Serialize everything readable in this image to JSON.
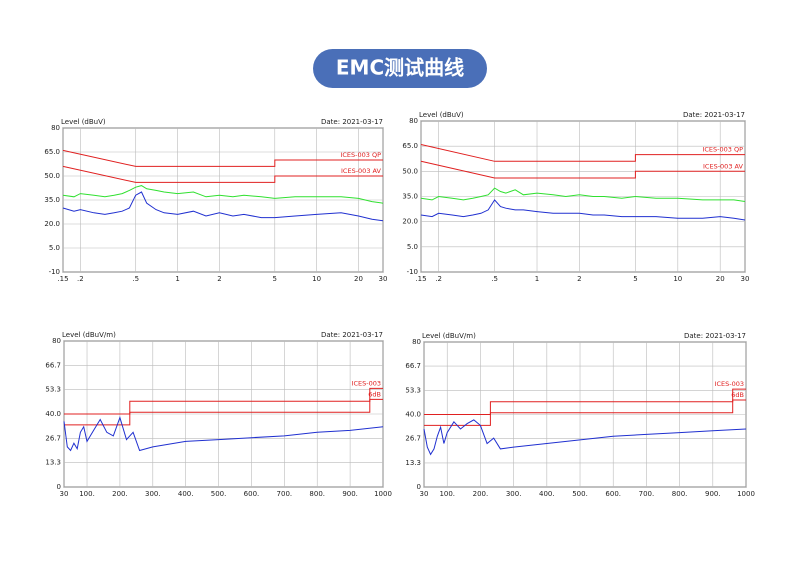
{
  "header": {
    "title": "EMC测试曲线"
  },
  "chart_data": [
    {
      "type": "line",
      "title": "Level (dBuV)",
      "subtitle": "Date: 2021-03-17",
      "xscale": "log",
      "grid": true,
      "xlim": [
        0.15,
        30
      ],
      "xticks": [
        {
          "value": 0.15,
          "label": ".15"
        },
        {
          "value": 0.2,
          "label": ".2"
        },
        {
          "value": 0.5,
          "label": ".5"
        },
        1,
        2,
        5,
        10,
        20,
        30
      ],
      "ylim": [
        -10,
        80
      ],
      "yticks": [
        80,
        {
          "value": 65,
          "label": "65.0"
        },
        {
          "value": 50,
          "label": "50.0"
        },
        {
          "value": 35,
          "label": "35.0"
        },
        {
          "value": 20,
          "label": "20.0"
        },
        {
          "value": 5,
          "label": "5.0"
        },
        -10
      ],
      "series": [
        {
          "name": "ICES-003 QP",
          "color": "#e02020",
          "x": [
            0.15,
            0.5,
            5,
            5,
            30
          ],
          "values": [
            66,
            56,
            56,
            60,
            60
          ]
        },
        {
          "name": "ICES-003 AV",
          "color": "#e02020",
          "x": [
            0.15,
            0.5,
            5,
            5,
            30
          ],
          "values": [
            56,
            46,
            46,
            50,
            50
          ]
        },
        {
          "color": "#30e030",
          "x": [
            0.15,
            0.18,
            0.2,
            0.25,
            0.3,
            0.35,
            0.4,
            0.45,
            0.5,
            0.55,
            0.6,
            0.7,
            0.8,
            1,
            1.3,
            1.6,
            2,
            2.5,
            3,
            4,
            5,
            7,
            10,
            15,
            20,
            25,
            30
          ],
          "values": [
            38,
            37,
            39,
            38,
            37,
            38,
            39,
            41,
            43,
            44,
            42,
            41,
            40,
            39,
            40,
            37,
            38,
            37,
            38,
            37,
            36,
            37,
            37,
            37,
            36,
            34,
            33
          ]
        },
        {
          "color": "#2030d0",
          "x": [
            0.15,
            0.18,
            0.2,
            0.25,
            0.3,
            0.35,
            0.4,
            0.45,
            0.5,
            0.55,
            0.6,
            0.7,
            0.8,
            1,
            1.3,
            1.6,
            2,
            2.5,
            3,
            4,
            5,
            7,
            10,
            15,
            20,
            25,
            30
          ],
          "values": [
            30,
            28,
            29,
            27,
            26,
            27,
            28,
            30,
            38,
            40,
            33,
            29,
            27,
            26,
            28,
            25,
            27,
            25,
            26,
            24,
            24,
            25,
            26,
            27,
            25,
            23,
            22
          ]
        }
      ]
    },
    {
      "type": "line",
      "title": "Level (dBuV)",
      "subtitle": "Date: 2021-03-17",
      "xscale": "log",
      "grid": true,
      "xlim": [
        0.15,
        30
      ],
      "xticks": [
        {
          "value": 0.15,
          "label": ".15"
        },
        {
          "value": 0.2,
          "label": ".2"
        },
        {
          "value": 0.5,
          "label": ".5"
        },
        1,
        2,
        5,
        10,
        20,
        30
      ],
      "ylim": [
        -10,
        80
      ],
      "yticks": [
        80,
        {
          "value": 65,
          "label": "65.0"
        },
        {
          "value": 50,
          "label": "50.0"
        },
        {
          "value": 35,
          "label": "35.0"
        },
        {
          "value": 20,
          "label": "20.0"
        },
        {
          "value": 5,
          "label": "5.0"
        },
        -10
      ],
      "series": [
        {
          "name": "ICES-003 QP",
          "color": "#e02020",
          "x": [
            0.15,
            0.5,
            5,
            5,
            30
          ],
          "values": [
            66,
            56,
            56,
            60,
            60
          ]
        },
        {
          "name": "ICES-003 AV",
          "color": "#e02020",
          "x": [
            0.15,
            0.5,
            5,
            5,
            30
          ],
          "values": [
            56,
            46,
            46,
            50,
            50
          ]
        },
        {
          "color": "#30e030",
          "x": [
            0.15,
            0.18,
            0.2,
            0.25,
            0.3,
            0.35,
            0.4,
            0.45,
            0.5,
            0.55,
            0.6,
            0.7,
            0.8,
            1,
            1.3,
            1.6,
            2,
            2.5,
            3,
            4,
            5,
            7,
            10,
            15,
            20,
            25,
            30
          ],
          "values": [
            34,
            33,
            35,
            34,
            33,
            34,
            35,
            36,
            40,
            38,
            37,
            39,
            36,
            37,
            36,
            35,
            36,
            35,
            35,
            34,
            35,
            34,
            34,
            33,
            33,
            33,
            32
          ]
        },
        {
          "color": "#2030d0",
          "x": [
            0.15,
            0.18,
            0.2,
            0.25,
            0.3,
            0.35,
            0.4,
            0.45,
            0.5,
            0.55,
            0.6,
            0.7,
            0.8,
            1,
            1.3,
            1.6,
            2,
            2.5,
            3,
            4,
            5,
            7,
            10,
            15,
            20,
            25,
            30
          ],
          "values": [
            24,
            23,
            25,
            24,
            23,
            24,
            25,
            27,
            33,
            29,
            28,
            27,
            27,
            26,
            25,
            25,
            25,
            24,
            24,
            23,
            23,
            23,
            22,
            22,
            23,
            22,
            21
          ]
        }
      ]
    },
    {
      "type": "line",
      "title": "Level (dBuV/m)",
      "subtitle": "Date: 2021-03-17",
      "xscale": "linear",
      "grid": true,
      "xlim": [
        30,
        1000
      ],
      "xticks": [
        30,
        {
          "value": 100,
          "label": "100."
        },
        {
          "value": 200,
          "label": "200."
        },
        {
          "value": 300,
          "label": "300."
        },
        {
          "value": 400,
          "label": "400."
        },
        {
          "value": 500,
          "label": "500."
        },
        {
          "value": 600,
          "label": "600."
        },
        {
          "value": 700,
          "label": "700."
        },
        {
          "value": 800,
          "label": "800."
        },
        {
          "value": 900,
          "label": "900."
        },
        1000
      ],
      "ylim": [
        0,
        80
      ],
      "yticks": [
        80,
        {
          "value": 66.7,
          "label": "66.7"
        },
        {
          "value": 53.3,
          "label": "53.3"
        },
        {
          "value": 40,
          "label": "40.0"
        },
        {
          "value": 26.7,
          "label": "26.7"
        },
        {
          "value": 13.3,
          "label": "13.3"
        },
        0
      ],
      "series": [
        {
          "name": "ICES-003",
          "color": "#e02020",
          "x": [
            30,
            230,
            230,
            960,
            960,
            1000
          ],
          "values": [
            40,
            40,
            47,
            47,
            54,
            54
          ]
        },
        {
          "name": "6dB",
          "color": "#e02020",
          "x": [
            30,
            230,
            230,
            960,
            960,
            1000
          ],
          "values": [
            34,
            34,
            41,
            41,
            48,
            48
          ]
        },
        {
          "color": "#2030d0",
          "x": [
            30,
            40,
            50,
            60,
            70,
            80,
            90,
            100,
            120,
            140,
            160,
            180,
            200,
            220,
            240,
            260,
            300,
            400,
            500,
            600,
            700,
            800,
            900,
            1000
          ],
          "values": [
            36,
            22,
            20,
            24,
            21,
            30,
            33,
            25,
            31,
            37,
            30,
            28,
            38,
            26,
            30,
            20,
            22,
            25,
            26,
            27,
            28,
            30,
            31,
            33
          ]
        }
      ]
    },
    {
      "type": "line",
      "title": "Level (dBuV/m)",
      "subtitle": "Date: 2021-03-17",
      "xscale": "linear",
      "grid": true,
      "xlim": [
        30,
        1000
      ],
      "xticks": [
        30,
        {
          "value": 100,
          "label": "100."
        },
        {
          "value": 200,
          "label": "200."
        },
        {
          "value": 300,
          "label": "300."
        },
        {
          "value": 400,
          "label": "400."
        },
        {
          "value": 500,
          "label": "500."
        },
        {
          "value": 600,
          "label": "600."
        },
        {
          "value": 700,
          "label": "700."
        },
        {
          "value": 800,
          "label": "800."
        },
        {
          "value": 900,
          "label": "900."
        },
        1000
      ],
      "ylim": [
        0,
        80
      ],
      "yticks": [
        80,
        {
          "value": 66.7,
          "label": "66.7"
        },
        {
          "value": 53.3,
          "label": "53.3"
        },
        {
          "value": 40,
          "label": "40.0"
        },
        {
          "value": 26.7,
          "label": "26.7"
        },
        {
          "value": 13.3,
          "label": "13.3"
        },
        0
      ],
      "series": [
        {
          "name": "ICES-003",
          "color": "#e02020",
          "x": [
            30,
            230,
            230,
            960,
            960,
            1000
          ],
          "values": [
            40,
            40,
            47,
            47,
            54,
            54
          ]
        },
        {
          "name": "6dB",
          "color": "#e02020",
          "x": [
            30,
            230,
            230,
            960,
            960,
            1000
          ],
          "values": [
            34,
            34,
            41,
            41,
            48,
            48
          ]
        },
        {
          "color": "#2030d0",
          "x": [
            30,
            40,
            50,
            60,
            70,
            80,
            90,
            100,
            120,
            140,
            160,
            180,
            200,
            220,
            240,
            260,
            300,
            400,
            500,
            600,
            700,
            800,
            900,
            1000
          ],
          "values": [
            32,
            22,
            18,
            21,
            28,
            33,
            24,
            30,
            36,
            32,
            35,
            37,
            34,
            24,
            27,
            21,
            22,
            24,
            26,
            28,
            29,
            30,
            31,
            32
          ]
        }
      ]
    }
  ]
}
